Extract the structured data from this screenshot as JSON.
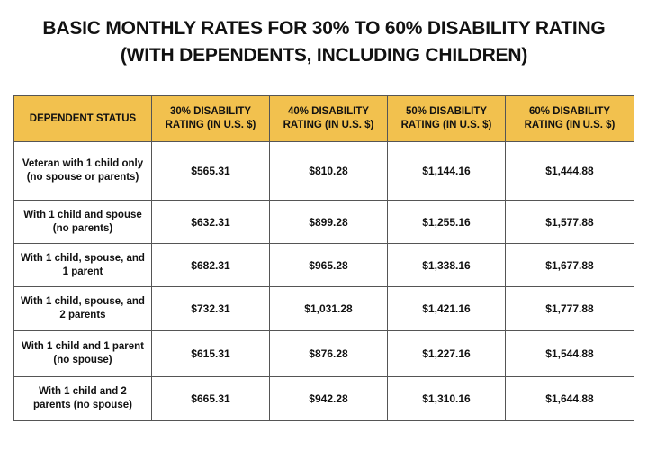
{
  "title": {
    "line1": "BASIC MONTHLY RATES FOR 30% TO 60% DISABILITY RATING",
    "line2": "(WITH DEPENDENTS, INCLUDING CHILDREN)"
  },
  "table": {
    "headers": [
      "DEPENDENT STATUS",
      "30% DISABILITY RATING (IN U.S. $)",
      "40% DISABILITY RATING (IN U.S. $)",
      "50% DISABILITY RATING (IN U.S. $)",
      "60% DISABILITY RATING (IN U.S. $)"
    ],
    "header_color": "#f2c14e",
    "rows": [
      [
        "Veteran with 1 child only (no spouse or parents)",
        "$565.31",
        "$810.28",
        "$1,144.16",
        "$1,444.88"
      ],
      [
        "With 1 child and spouse (no parents)",
        "$632.31",
        "$899.28",
        "$1,255.16",
        "$1,577.88"
      ],
      [
        "With 1 child, spouse, and 1 parent",
        "$682.31",
        "$965.28",
        "$1,338.16",
        "$1,677.88"
      ],
      [
        "With 1 child, spouse, and 2 parents",
        "$732.31",
        "$1,031.28",
        "$1,421.16",
        "$1,777.88"
      ],
      [
        "With 1 child and 1 parent (no spouse)",
        "$615.31",
        "$876.28",
        "$1,227.16",
        "$1,544.88"
      ],
      [
        "With 1 child and 2 parents (no spouse)",
        "$665.31",
        "$942.28",
        "$1,310.16",
        "$1,644.88"
      ]
    ]
  }
}
